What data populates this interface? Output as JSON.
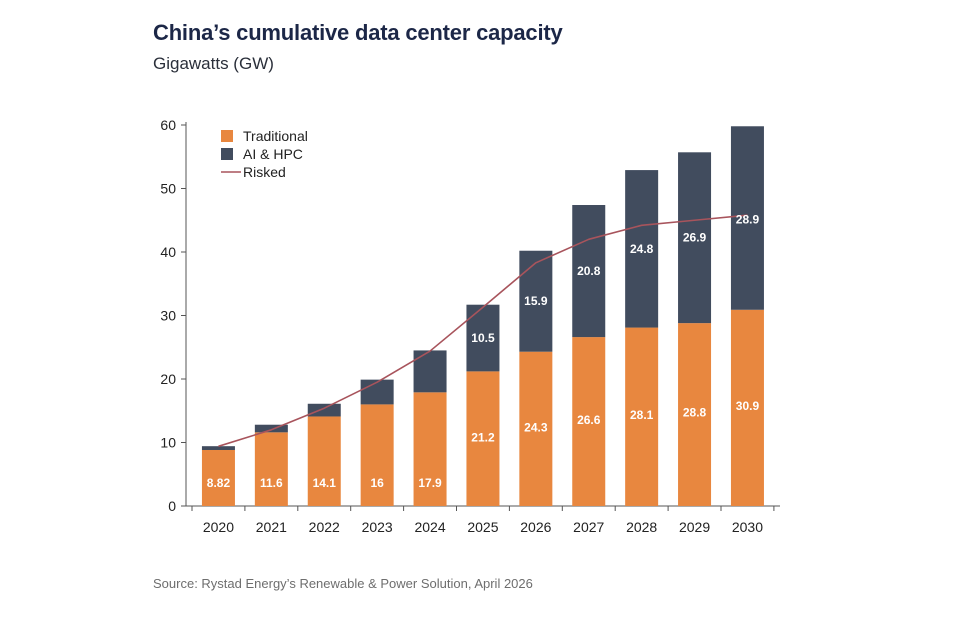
{
  "title": "China’s cumulative data center capacity",
  "subtitle": "Gigawatts (GW)",
  "source": "Source: Rystad Energy’s Renewable & Power Solution, April 2026",
  "colors": {
    "traditional": "#e8873f",
    "ai_hpc": "#414c5e",
    "risked": "#a8545c",
    "axis": "#555555"
  },
  "chart_data": {
    "type": "bar",
    "stacked": true,
    "title": "China’s cumulative data center capacity",
    "ylabel": "Gigawatts (GW)",
    "xlabel": "",
    "ylim": [
      0,
      60
    ],
    "yticks": [
      0,
      10,
      20,
      30,
      40,
      50,
      60
    ],
    "ytick_labels": [
      "0",
      "10",
      "20",
      "30",
      "40",
      "50",
      "60"
    ],
    "grid": false,
    "legend_position": "top-left",
    "categories": [
      "2020",
      "2021",
      "2022",
      "2023",
      "2024",
      "2025",
      "2026",
      "2027",
      "2028",
      "2029",
      "2030"
    ],
    "series": [
      {
        "name": "Traditional",
        "kind": "bar",
        "values": [
          8.82,
          11.6,
          14.1,
          16,
          17.9,
          21.2,
          24.3,
          26.6,
          28.1,
          28.8,
          30.9
        ],
        "labels": [
          "8.82",
          "11.6",
          "14.1",
          "16",
          "17.9",
          "21.2",
          "24.3",
          "26.6",
          "28.1",
          "28.8",
          "30.9"
        ]
      },
      {
        "name": "AI & HPC",
        "kind": "bar",
        "values": [
          0.6,
          1.2,
          2.0,
          3.9,
          6.6,
          10.5,
          15.9,
          20.8,
          24.8,
          26.9,
          28.9
        ],
        "labels": [
          "",
          "",
          "",
          "",
          "",
          "10.5",
          "15.9",
          "20.8",
          "24.8",
          "26.9",
          "28.9"
        ]
      },
      {
        "name": "Risked",
        "kind": "line",
        "values": [
          9.4,
          12.0,
          15.4,
          19.5,
          24.4,
          31.3,
          38.3,
          42.0,
          44.2,
          45.0,
          45.8
        ]
      }
    ]
  }
}
